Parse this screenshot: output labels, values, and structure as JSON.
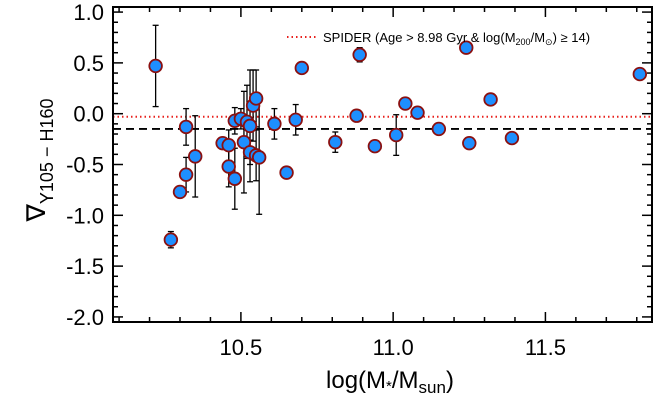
{
  "chart_data": {
    "type": "scatter",
    "xlabel": "log(M*/Msun)",
    "xlabel_parts": {
      "main": "log(M",
      "sub1": "*",
      "mid": "/M",
      "sub2": "sun",
      "end": ")"
    },
    "ylabel": "∇ Y105 − H160",
    "ylabel_parts": {
      "main": "∇",
      "sub": "Y105 − H160"
    },
    "xlim": [
      10.08,
      11.85
    ],
    "ylim": [
      -2.05,
      1.05
    ],
    "x_ticks": [
      10.5,
      11.0,
      11.5
    ],
    "x_tick_labels": [
      "10.5",
      "11.0",
      "11.5"
    ],
    "x_minor_step": 0.1,
    "y_ticks": [
      -2.0,
      -1.5,
      -1.0,
      -0.5,
      0.0,
      0.5,
      1.0
    ],
    "y_tick_labels": [
      "-2.0",
      "-1.5",
      "-1.0",
      "-0.5",
      "0.0",
      "0.5",
      "1.0"
    ],
    "y_minor_step": 0.1,
    "grid": false,
    "legend": {
      "placement": "top-right",
      "entries": [
        {
          "style": "dotted",
          "color": "#e8201c",
          "parts": {
            "pre": "SPIDER (Age > 8.98 Gyr & log(M",
            "sub1": "200",
            "mid": "/M",
            "sub2": "⊙",
            "post": ") ≥ 14)"
          }
        }
      ]
    },
    "reference_lines": [
      {
        "name": "SPIDER",
        "y": -0.03,
        "style": "dotted",
        "color": "#e8201c"
      },
      {
        "name": "mean",
        "y": -0.15,
        "style": "dashed",
        "color": "#000000"
      }
    ],
    "marker": {
      "fill": "#1e8fff",
      "stroke": "#8b1010"
    },
    "points": [
      {
        "x": 10.22,
        "y": 0.47,
        "err": 0.4
      },
      {
        "x": 10.27,
        "y": -1.24,
        "err": 0.08
      },
      {
        "x": 10.3,
        "y": -0.77,
        "err": 0.0
      },
      {
        "x": 10.32,
        "y": -0.6,
        "err": 0.17
      },
      {
        "x": 10.32,
        "y": -0.13,
        "err": 0.18
      },
      {
        "x": 10.35,
        "y": -0.42,
        "err": 0.4
      },
      {
        "x": 10.44,
        "y": -0.29,
        "err": 0.05
      },
      {
        "x": 10.46,
        "y": -0.52,
        "err": 0.2
      },
      {
        "x": 10.46,
        "y": -0.31,
        "err": 0.15
      },
      {
        "x": 10.48,
        "y": -0.07,
        "err": 0.13
      },
      {
        "x": 10.48,
        "y": -0.64,
        "err": 0.3
      },
      {
        "x": 10.5,
        "y": -0.05,
        "err": 0.1
      },
      {
        "x": 10.51,
        "y": -0.28,
        "err": 0.5
      },
      {
        "x": 10.52,
        "y": -0.08,
        "err": 0.36
      },
      {
        "x": 10.53,
        "y": -0.12,
        "err": 0.55
      },
      {
        "x": 10.53,
        "y": -0.38,
        "err": 0.12
      },
      {
        "x": 10.54,
        "y": 0.08,
        "err": 0.35
      },
      {
        "x": 10.55,
        "y": 0.15,
        "err": 0.28
      },
      {
        "x": 10.55,
        "y": -0.41,
        "err": 0.25
      },
      {
        "x": 10.56,
        "y": -0.43,
        "err": 0.56
      },
      {
        "x": 10.61,
        "y": -0.1,
        "err": 0.15
      },
      {
        "x": 10.65,
        "y": -0.58,
        "err": 0.0
      },
      {
        "x": 10.68,
        "y": -0.06,
        "err": 0.15
      },
      {
        "x": 10.7,
        "y": 0.45,
        "err": 0.0
      },
      {
        "x": 10.81,
        "y": -0.28,
        "err": 0.1
      },
      {
        "x": 10.88,
        "y": -0.02,
        "err": 0.0
      },
      {
        "x": 10.89,
        "y": 0.58,
        "err": 0.07
      },
      {
        "x": 10.94,
        "y": -0.32,
        "err": 0.05
      },
      {
        "x": 11.01,
        "y": -0.21,
        "err": 0.2
      },
      {
        "x": 11.04,
        "y": 0.1,
        "err": 0.0
      },
      {
        "x": 11.08,
        "y": 0.01,
        "err": 0.0
      },
      {
        "x": 11.15,
        "y": -0.15,
        "err": 0.0
      },
      {
        "x": 11.24,
        "y": 0.65,
        "err": 0.0
      },
      {
        "x": 11.25,
        "y": -0.29,
        "err": 0.0
      },
      {
        "x": 11.32,
        "y": 0.14,
        "err": 0.0
      },
      {
        "x": 11.39,
        "y": -0.24,
        "err": 0.0
      },
      {
        "x": 11.81,
        "y": 0.39,
        "err": 0.0
      }
    ]
  }
}
